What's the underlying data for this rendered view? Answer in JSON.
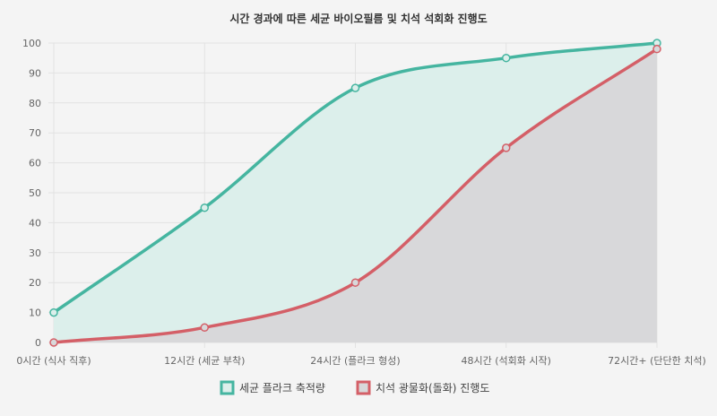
{
  "chart_data": {
    "type": "area",
    "title": "시간 경과에 따른 세균 바이오필름 및 치석 석회화 진행도",
    "xlabel": "",
    "ylabel": "",
    "categories": [
      "0시간 (식사 직후)",
      "12시간 (세균 부착)",
      "24시간 (플라크 형성)",
      "48시간 (석회화 시작)",
      "72시간+ (단단한 치석)"
    ],
    "ylim": [
      0,
      100
    ],
    "yticks": [
      0,
      10,
      20,
      30,
      40,
      50,
      60,
      70,
      80,
      90,
      100
    ],
    "grid": true,
    "legend_position": "bottom",
    "series": [
      {
        "name": "세균 플라크 축적량",
        "values": [
          10,
          45,
          85,
          95,
          100
        ],
        "color": "#45b5a0",
        "fill": "#dcefeb"
      },
      {
        "name": "치석 광물화(돌화) 진행도",
        "values": [
          0,
          5,
          20,
          65,
          98
        ],
        "color": "#d45f67",
        "fill": "#d8d8da"
      }
    ]
  }
}
